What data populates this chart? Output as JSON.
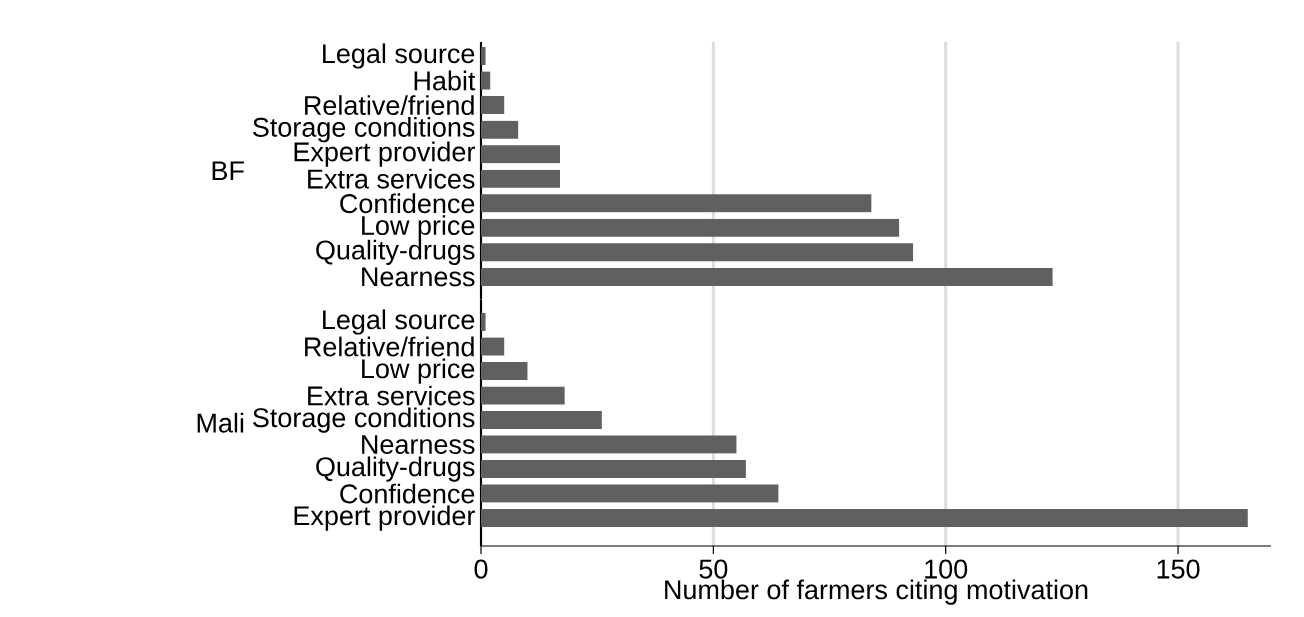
{
  "chart_data": [
    {
      "type": "bar",
      "orientation": "horizontal",
      "ylabel": "BF",
      "categories": [
        "Legal source",
        "Habit",
        "Relative/friend",
        "Storage conditions",
        "Expert provider",
        "Extra services",
        "Confidence",
        "Low price",
        "Quality-drugs",
        "Nearness"
      ],
      "values": [
        1,
        2,
        5,
        8,
        17,
        17,
        84,
        90,
        93,
        123
      ],
      "color": "#606060",
      "xticks": [
        0,
        50,
        100,
        150
      ],
      "grid": "x",
      "tick_labels": "y"
    },
    {
      "type": "bar",
      "orientation": "horizontal",
      "ylabel": "Mali",
      "xlabel": "Number of farmers citing motivation",
      "categories": [
        "Legal source",
        "Relative/friend",
        "Low price",
        "Extra services",
        "Storage conditions",
        "Nearness",
        "Quality-drugs",
        "Confidence",
        "Expert provider"
      ],
      "values": [
        1,
        5,
        10,
        18,
        26,
        55,
        57,
        64,
        165
      ],
      "color": "#606060",
      "xlim": [
        0,
        170
      ],
      "xticks": [
        0,
        50,
        100,
        150
      ],
      "grid": "x"
    }
  ]
}
